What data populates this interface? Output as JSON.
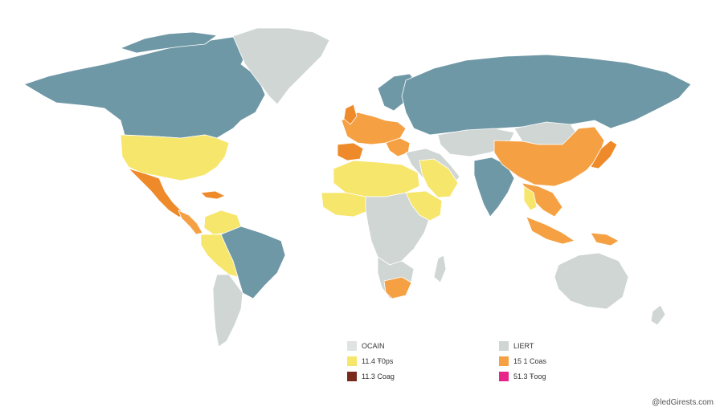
{
  "colors": {
    "ocean": "#ffffff",
    "teal": "#6f98a6",
    "grey": "#cfd6d3",
    "yellow": "#f7e66c",
    "orange": "#f5a043",
    "dark_orange": "#ef8a2a",
    "brown": "#7a2a1a",
    "magenta": "#e8238a"
  },
  "legend": {
    "left": [
      {
        "label": "OCAIN",
        "color": "#dfe3e1"
      },
      {
        "label": "11.4 Ŧ0ps",
        "color": "#f7e66c"
      },
      {
        "label": "11.3 Coag",
        "color": "#7a2a1a"
      }
    ],
    "right": [
      {
        "label": "LIERT",
        "color": "#cfd6d3"
      },
      {
        "label": "15 1 Coas",
        "color": "#f5a043"
      },
      {
        "label": "51.3 Ŧoog",
        "color": "#e8238a"
      }
    ]
  },
  "credit": "@ledGirests.com"
}
